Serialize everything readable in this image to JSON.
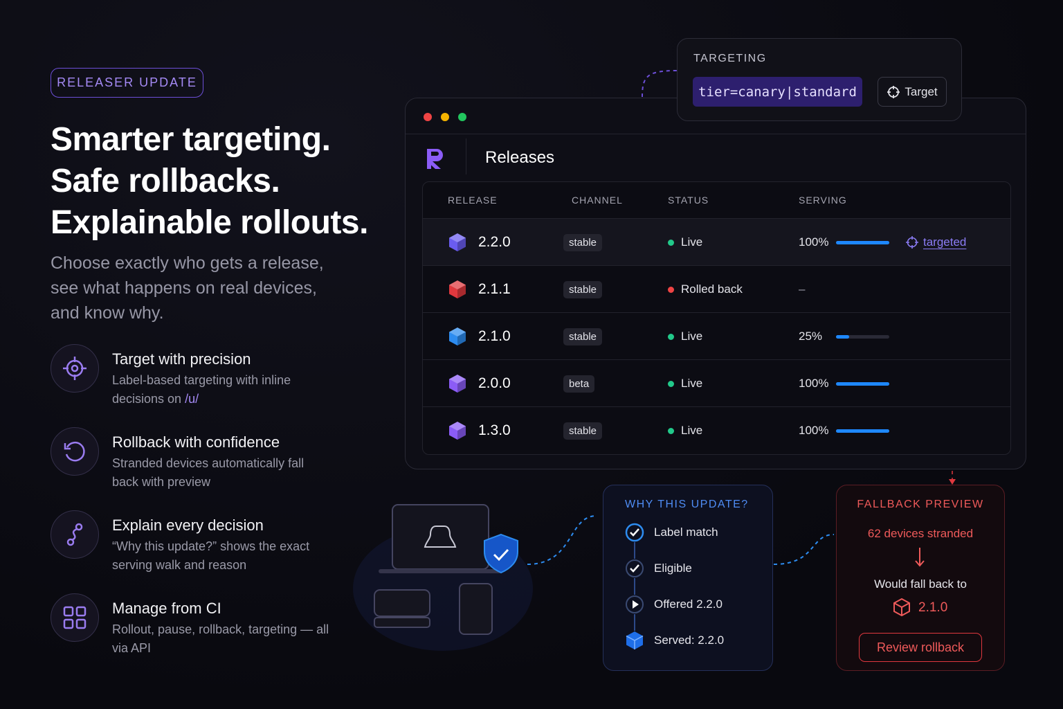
{
  "badge": "RELEASER UPDATE",
  "headline": [
    "Smarter targeting.",
    "Safe rollbacks.",
    "Explainable rollouts."
  ],
  "subhead": "Choose exactly who gets a release, see what happens on real devices, and know why.",
  "features": [
    {
      "title": "Target with precision",
      "description": "Label-based targeting with inline decisions on",
      "code": "/u/"
    },
    {
      "title": "Rollback with confidence",
      "description": "Stranded devices automatically fall back with preview"
    },
    {
      "title": "Explain every decision",
      "description": "“Why this update?” shows the exact serving walk and reason"
    },
    {
      "title": "Manage from CI",
      "description": "Rollout, pause, rollback, targeting — all via API"
    }
  ],
  "targeting": {
    "label": "TARGETING",
    "query": "tier=canary|standard",
    "button": "Target"
  },
  "releases": {
    "title": "Releases",
    "columns": [
      "RELEASE",
      "CHANNEL",
      "STATUS",
      "SERVING"
    ],
    "rows": [
      {
        "release": "2.2.0",
        "channel": "stable",
        "status": "Live",
        "serving": {
          "value": 100,
          "label": "100%"
        },
        "note": "targeted",
        "icon_color": "#6a5cf0",
        "status_color": "#22c98a"
      },
      {
        "release": "2.1.1",
        "channel": "stable",
        "status": "Rolled back",
        "serving": "–",
        "icon_color": "#e0383e",
        "status_color": "#ef4444"
      },
      {
        "release": "2.1.0",
        "channel": "stable",
        "status": "Live",
        "serving": {
          "value": 25,
          "label": "25%"
        },
        "icon_color": "#2d8cf0",
        "status_color": "#22c98a"
      },
      {
        "release": "2.0.0",
        "channel": "beta",
        "status": "Live",
        "serving": {
          "value": 100,
          "label": "100%"
        },
        "icon_color": "#8b5cf6",
        "status_color": "#22c98a"
      },
      {
        "release": "1.3.0",
        "channel": "stable",
        "status": "Live",
        "serving": {
          "value": 100,
          "label": "100%"
        },
        "icon_color": "#8b5cf6",
        "status_color": "#22c98a"
      }
    ]
  },
  "why": {
    "title": "WHY THIS UPDATE?",
    "steps": [
      "Label match",
      "Eligible",
      "Offered 2.2.0",
      "Served: 2.2.0"
    ]
  },
  "fallback": {
    "title": "FALLBACK PREVIEW",
    "stranded": "62 devices stranded",
    "would": "Would fall back to",
    "version": "2.1.0",
    "button": "Review rollback"
  }
}
